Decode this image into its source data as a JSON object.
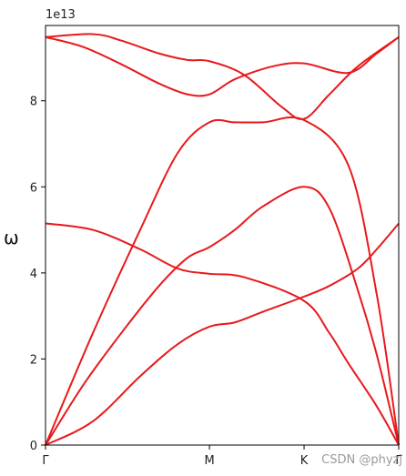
{
  "chart_data": {
    "type": "line",
    "ylabel": "ω",
    "y_multiplier": "1e13",
    "ylim": [
      0,
      9.75
    ],
    "xlim": [
      0,
      3.732
    ],
    "x_ticks": [
      {
        "value": 0,
        "label": "Γ"
      },
      {
        "value": 1.732,
        "label": "M"
      },
      {
        "value": 2.732,
        "label": "K"
      },
      {
        "value": 3.732,
        "label": "Γ"
      }
    ],
    "y_ticks": [
      0,
      2,
      4,
      6,
      8
    ],
    "y_tick_labels": [
      "0",
      "2",
      "4",
      "6",
      "8"
    ],
    "grid": false,
    "line_color": "#e8191c",
    "series": [
      {
        "x": [
          0,
          0.5,
          1.0,
          1.4,
          1.732,
          2.0,
          2.3,
          2.732,
          3.0,
          3.3,
          3.5,
          3.732
        ],
        "values": [
          0,
          0.55,
          1.6,
          2.35,
          2.75,
          2.85,
          3.1,
          3.45,
          3.7,
          4.1,
          4.55,
          5.15
        ]
      },
      {
        "x": [
          0,
          0.4,
          0.8,
          1.2,
          1.5,
          1.732,
          2.0,
          2.3,
          2.732,
          3.0,
          3.3,
          3.5,
          3.732
        ],
        "values": [
          0,
          1.4,
          2.6,
          3.7,
          4.35,
          4.6,
          5.0,
          5.55,
          6.0,
          5.5,
          3.6,
          2.1,
          0
        ]
      },
      {
        "x": [
          0,
          0.5,
          1.0,
          1.4,
          1.732,
          2.1,
          2.732,
          3.0,
          3.2,
          3.5,
          3.732
        ],
        "values": [
          5.15,
          5.0,
          4.55,
          4.1,
          3.98,
          3.9,
          3.35,
          2.6,
          1.9,
          0.9,
          0
        ]
      },
      {
        "x": [
          0,
          0.5,
          1.0,
          1.4,
          1.732,
          2.0,
          2.3,
          2.732,
          3.2,
          3.5,
          3.732
        ],
        "values": [
          0,
          2.6,
          5.0,
          6.8,
          7.5,
          7.5,
          7.5,
          7.55,
          6.5,
          3.5,
          0
        ]
      },
      {
        "x": [
          0,
          0.5,
          0.8,
          1.2,
          1.5,
          1.732,
          2.1,
          2.5,
          2.732,
          3.0,
          3.3,
          3.732
        ],
        "values": [
          9.48,
          9.55,
          9.4,
          9.1,
          8.95,
          8.92,
          8.6,
          7.85,
          7.58,
          8.15,
          8.8,
          9.48
        ]
      },
      {
        "x": [
          0,
          0.4,
          0.8,
          1.2,
          1.5,
          1.732,
          2.0,
          2.4,
          2.732,
          3.2,
          3.5,
          3.732
        ],
        "values": [
          9.48,
          9.25,
          8.85,
          8.4,
          8.15,
          8.15,
          8.5,
          8.8,
          8.87,
          8.65,
          9.1,
          9.48
        ]
      }
    ]
  },
  "watermark": "CSDN @phyzj"
}
